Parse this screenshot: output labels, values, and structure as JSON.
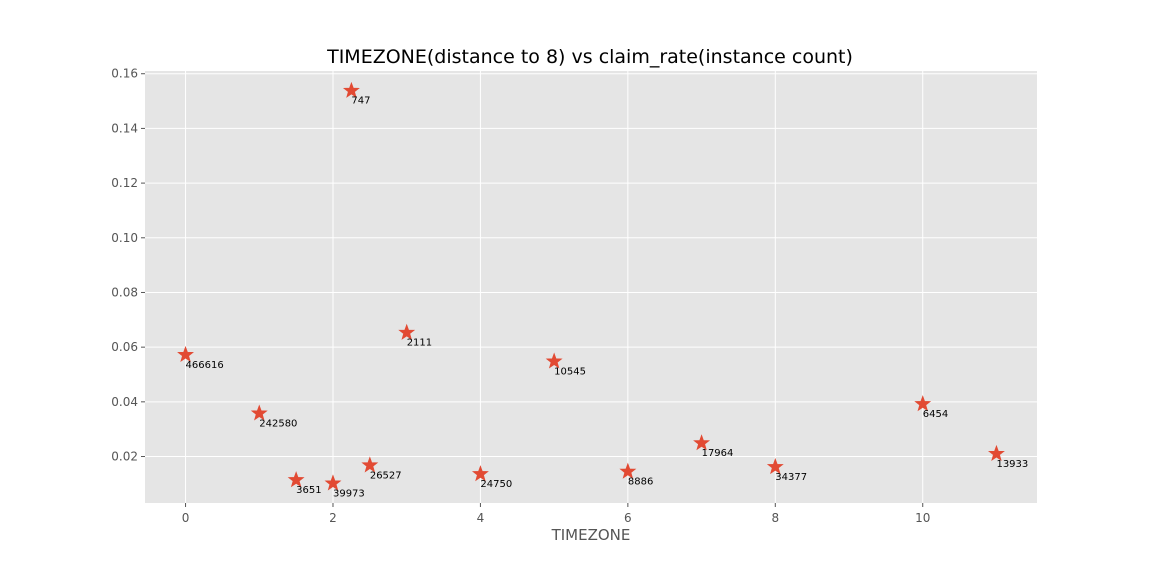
{
  "chart_data": {
    "type": "scatter",
    "title": "TIMEZONE(distance to 8) vs claim_rate(instance count)",
    "xlabel": "TIMEZONE",
    "ylabel": "",
    "xlim": [
      -0.55,
      11.55
    ],
    "ylim": [
      0.003,
      0.161
    ],
    "x_ticks": [
      0,
      2,
      4,
      6,
      8,
      10
    ],
    "y_ticks": [
      0.02,
      0.04,
      0.06,
      0.08,
      0.1,
      0.12,
      0.14,
      0.16
    ],
    "x_tick_labels": [
      "0",
      "2",
      "4",
      "6",
      "8",
      "10"
    ],
    "y_tick_labels": [
      "0.02",
      "0.04",
      "0.06",
      "0.08",
      "0.10",
      "0.12",
      "0.14",
      "0.16"
    ],
    "grid": true,
    "marker": "star",
    "marker_color": "#E24A33",
    "background_color": "#E5E5E5",
    "points": [
      {
        "x": 0,
        "y": 0.0572,
        "label": "466616"
      },
      {
        "x": 1,
        "y": 0.0358,
        "label": "242580"
      },
      {
        "x": 1.5,
        "y": 0.0114,
        "label": "3651"
      },
      {
        "x": 2,
        "y": 0.0102,
        "label": "39973"
      },
      {
        "x": 2.25,
        "y": 0.1538,
        "label": "747"
      },
      {
        "x": 2.5,
        "y": 0.0168,
        "label": "26527"
      },
      {
        "x": 3,
        "y": 0.0653,
        "label": "2111"
      },
      {
        "x": 4,
        "y": 0.0136,
        "label": "24750"
      },
      {
        "x": 5,
        "y": 0.0548,
        "label": "10545"
      },
      {
        "x": 6,
        "y": 0.0145,
        "label": "8886"
      },
      {
        "x": 7,
        "y": 0.0249,
        "label": "17964"
      },
      {
        "x": 8,
        "y": 0.0162,
        "label": "34377"
      },
      {
        "x": 10,
        "y": 0.0392,
        "label": "6454"
      },
      {
        "x": 11,
        "y": 0.021,
        "label": "13933"
      }
    ]
  }
}
